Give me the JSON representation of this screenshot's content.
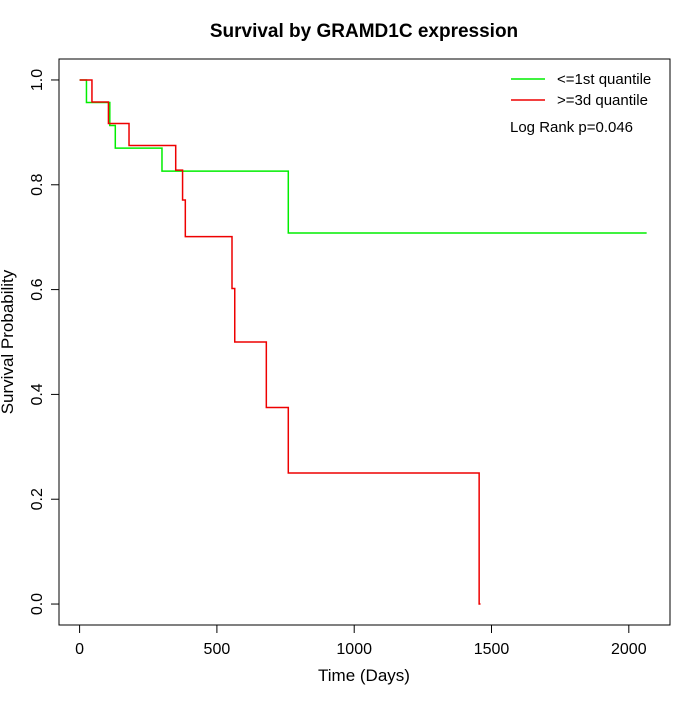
{
  "chart_data": {
    "type": "line",
    "title": "Survival by GRAMD1C expression",
    "xlabel": "Time (Days)",
    "ylabel": "Survival Probability",
    "xlim": [
      -75,
      2150
    ],
    "ylim": [
      -0.04,
      1.04
    ],
    "x_ticks": [
      0,
      500,
      1000,
      1500,
      2000
    ],
    "y_ticks": [
      0.0,
      0.2,
      0.4,
      0.6,
      0.8,
      1.0
    ],
    "x_tick_labels": [
      "0",
      "500",
      "1000",
      "1500",
      "2000"
    ],
    "y_tick_labels": [
      "0.0",
      "0.2",
      "0.4",
      "0.6",
      "0.8",
      "1.0"
    ],
    "grid": false,
    "legend_position": "top-right",
    "annotation": "Log Rank p=0.046",
    "series": [
      {
        "name": "<=1st quantile",
        "color": "#00ee00",
        "step": true,
        "x": [
          0,
          25,
          110,
          130,
          300,
          760,
          2065
        ],
        "y": [
          1.0,
          0.957,
          0.913,
          0.87,
          0.826,
          0.708,
          0.708
        ]
      },
      {
        "name": ">=3d quantile",
        "color": "#ee0000",
        "step": true,
        "x": [
          0,
          45,
          105,
          180,
          350,
          375,
          385,
          555,
          565,
          680,
          760,
          1455,
          1460
        ],
        "y": [
          1.0,
          0.958,
          0.917,
          0.875,
          0.828,
          0.771,
          0.701,
          0.602,
          0.5,
          0.375,
          0.25,
          0.0,
          0.0
        ]
      }
    ]
  }
}
